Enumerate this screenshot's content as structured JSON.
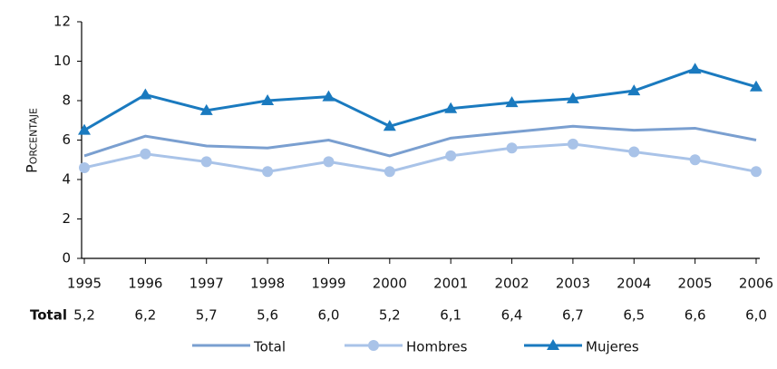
{
  "chart_data": {
    "type": "line",
    "y_label": "Porcentaje",
    "row_label": "Total",
    "categories": [
      "1995",
      "1996",
      "1997",
      "1998",
      "1999",
      "2000",
      "2001",
      "2002",
      "2003",
      "2004",
      "2005",
      "2006"
    ],
    "series": [
      {
        "name": "Total",
        "color": "#7a9fd0",
        "marker": "none",
        "values": [
          5.2,
          6.2,
          5.7,
          5.6,
          6.0,
          5.2,
          6.1,
          6.4,
          6.7,
          6.5,
          6.6,
          6.0
        ],
        "value_labels": [
          "5,2",
          "6,2",
          "5,7",
          "5,6",
          "6,0",
          "5,2",
          "6,1",
          "6,4",
          "6,7",
          "6,5",
          "6,6",
          "6,0"
        ]
      },
      {
        "name": "Hombres",
        "color": "#a9c3e8",
        "marker": "circle",
        "values": [
          4.6,
          5.3,
          4.9,
          4.4,
          4.9,
          4.4,
          5.2,
          5.6,
          5.8,
          5.4,
          5.0,
          4.4
        ]
      },
      {
        "name": "Mujeres",
        "color": "#1a7abf",
        "marker": "triangle",
        "values": [
          6.5,
          8.3,
          7.5,
          8.0,
          8.2,
          6.7,
          7.6,
          7.9,
          8.1,
          8.5,
          9.6,
          8.7
        ]
      }
    ],
    "ylim": [
      0,
      12
    ],
    "yticks": [
      0,
      2,
      4,
      6,
      8,
      10,
      12
    ]
  }
}
